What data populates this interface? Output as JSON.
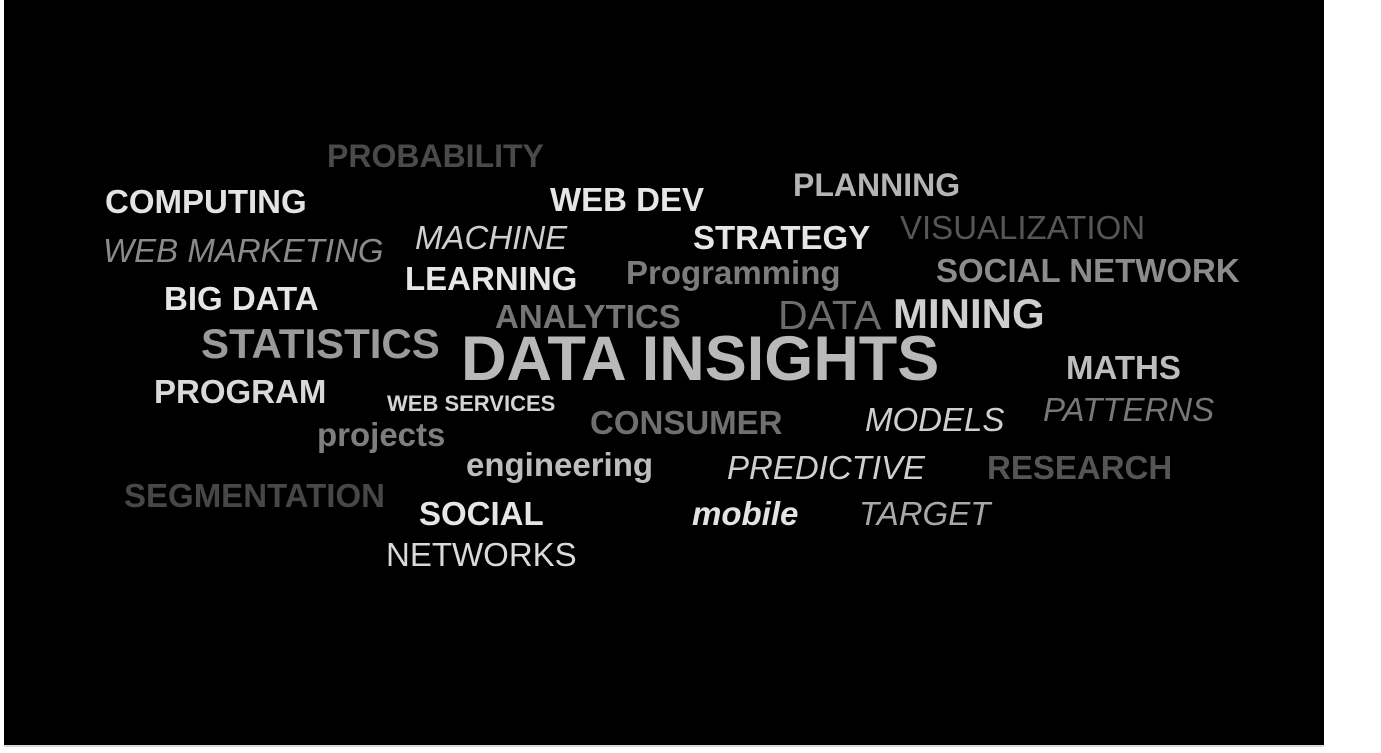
{
  "colors": {
    "background": "#000000",
    "page": "#ffffff",
    "white": "#ececec",
    "light": "#d2d2d2",
    "mid": "#a8a8a8",
    "gray": "#7c7c7c",
    "dark": "#555555",
    "darker": "#454545"
  },
  "words": [
    {
      "id": "probability",
      "text": "PROBABILITY"
    },
    {
      "id": "computing",
      "text": "COMPUTING"
    },
    {
      "id": "web-dev",
      "text": "WEB DEV"
    },
    {
      "id": "planning",
      "text": "PLANNING"
    },
    {
      "id": "web-marketing",
      "text": "WEB MARKETING"
    },
    {
      "id": "machine",
      "text": "MACHINE"
    },
    {
      "id": "strategy",
      "text": "STRATEGY"
    },
    {
      "id": "visualization",
      "text": "VISUALIZATION"
    },
    {
      "id": "learning",
      "text": "LEARNING"
    },
    {
      "id": "programming",
      "text": "Programming"
    },
    {
      "id": "social-network",
      "text": "SOCIAL NETWORK"
    },
    {
      "id": "big-data",
      "text": "BIG DATA"
    },
    {
      "id": "analytics",
      "text": "ANALYTICS"
    },
    {
      "id": "data",
      "text": "DATA"
    },
    {
      "id": "mining",
      "text": "MINING"
    },
    {
      "id": "statistics",
      "text": "STATISTICS"
    },
    {
      "id": "data-insights",
      "text": "DATA INSIGHTS"
    },
    {
      "id": "maths",
      "text": "MATHS"
    },
    {
      "id": "program",
      "text": "PROGRAM"
    },
    {
      "id": "web-services",
      "text": "WEB SERVICES"
    },
    {
      "id": "projects",
      "text": "projects"
    },
    {
      "id": "consumer",
      "text": "CONSUMER"
    },
    {
      "id": "models",
      "text": "MODELS"
    },
    {
      "id": "patterns",
      "text": "PATTERNS"
    },
    {
      "id": "engineering",
      "text": "engineering"
    },
    {
      "id": "predictive",
      "text": "PREDICTIVE"
    },
    {
      "id": "research",
      "text": "RESEARCH"
    },
    {
      "id": "segmentation",
      "text": "SEGMENTATION"
    },
    {
      "id": "social",
      "text": "SOCIAL"
    },
    {
      "id": "mobile",
      "text": "mobile"
    },
    {
      "id": "target",
      "text": "TARGET"
    },
    {
      "id": "networks",
      "text": "NETWORKS"
    }
  ]
}
